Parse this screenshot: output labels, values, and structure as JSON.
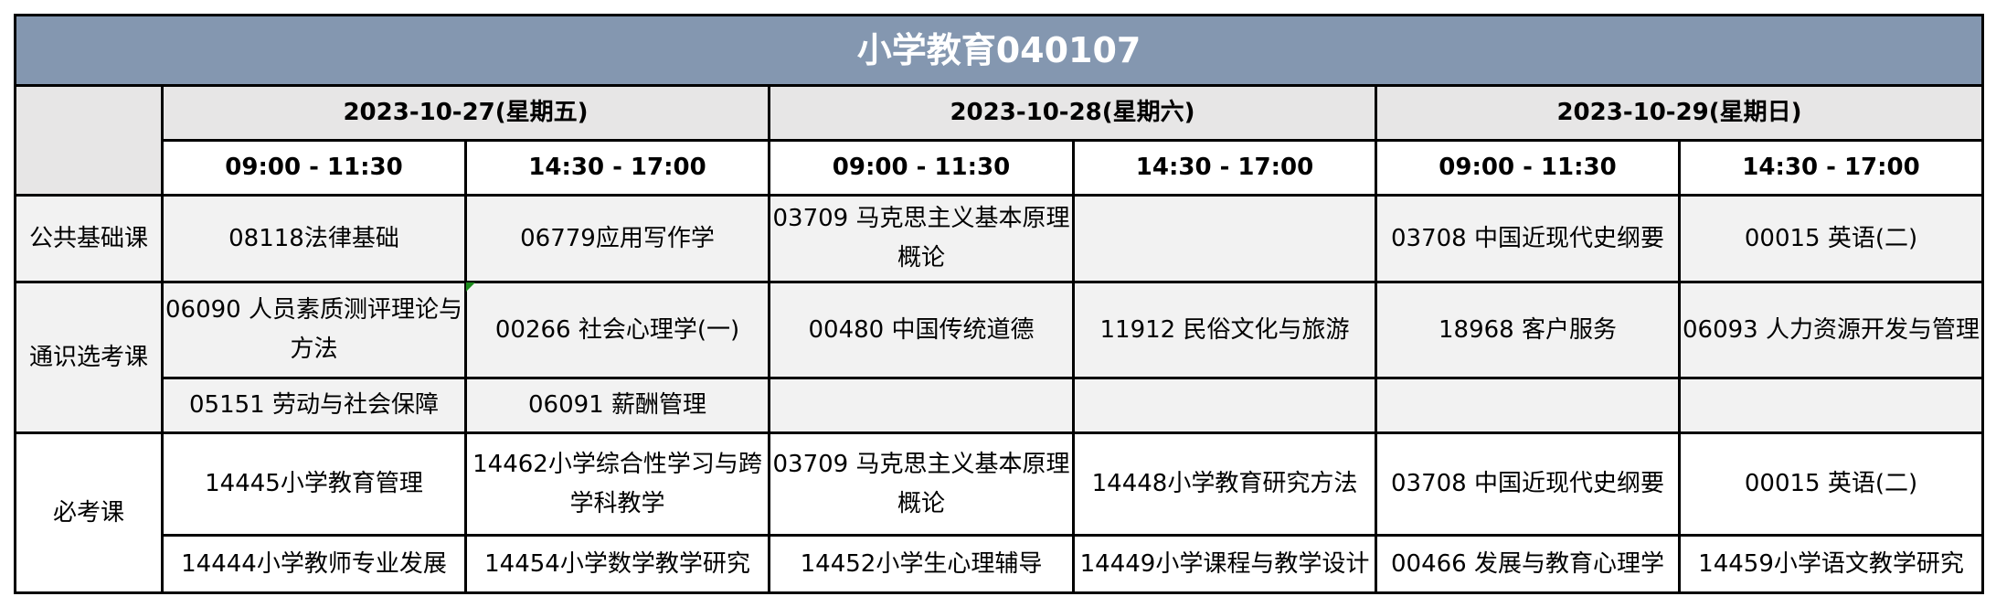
{
  "title": "小学教育040107",
  "dates": [
    "2023-10-27(星期五)",
    "2023-10-28(星期六)",
    "2023-10-29(星期日)"
  ],
  "times": [
    "09:00 - 11:30",
    "14:30 - 17:00",
    "09:00 - 11:30",
    "14:30 - 17:00",
    "09:00 - 11:30",
    "14:30 - 17:00"
  ],
  "categories": {
    "public": "公共基础课",
    "general": "通识选考课",
    "required": "必考课"
  },
  "rows": {
    "public": [
      "08118法律基础",
      "06779应用写作学",
      "03709 马克思主义基本原理概论",
      "",
      "03708 中国近现代史纲要",
      "00015 英语(二)"
    ],
    "general_1": [
      "06090 人员素质测评理论与方法",
      "00266 社会心理学(一)",
      "00480 中国传统道德",
      "11912 民俗文化与旅游",
      "18968 客户服务",
      "06093 人力资源开发与管理"
    ],
    "general_2": [
      "05151 劳动与社会保障",
      "06091 薪酬管理",
      "",
      "",
      "",
      ""
    ],
    "required_1": [
      "14445小学教育管理",
      "14462小学综合性学习与跨学科教学",
      "03709 马克思主义基本原理概论",
      "14448小学教育研究方法",
      "03708 中国近现代史纲要",
      "00015 英语(二)"
    ],
    "required_2": [
      "14444小学教师专业发展",
      "14454小学数学教学研究",
      "14452小学生心理辅导",
      "14449小学课程与教学设计",
      "00466 发展与教育心理学",
      "14459小学语文教学研究"
    ]
  },
  "colors": {
    "title_bg": "#8497b0",
    "header_bg": "#e7e6e6",
    "row_bg": "#f2f2f2",
    "comment_marker": "#1a8a1a"
  }
}
